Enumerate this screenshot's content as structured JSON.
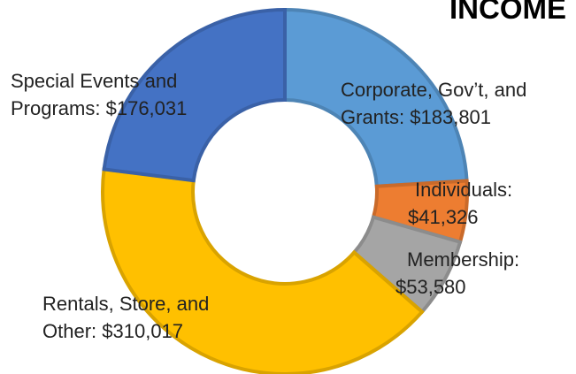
{
  "chart_data": {
    "type": "donut",
    "title": "INCOME",
    "categories": [
      "Corporate, Gov’t, and Grants:",
      "Individuals:",
      "Membership:",
      "Rentals, Store, and Other:",
      "Special Events and Programs:"
    ],
    "values": [
      183801,
      41326,
      53580,
      310017,
      176031
    ],
    "value_labels": [
      "$183,801",
      "$41,326",
      "$53,580",
      "$310,017",
      "$176,031"
    ],
    "colors": [
      "#5b9bd5",
      "#ed7d31",
      "#a5a5a5",
      "#ffc000",
      "#4472c4"
    ]
  }
}
